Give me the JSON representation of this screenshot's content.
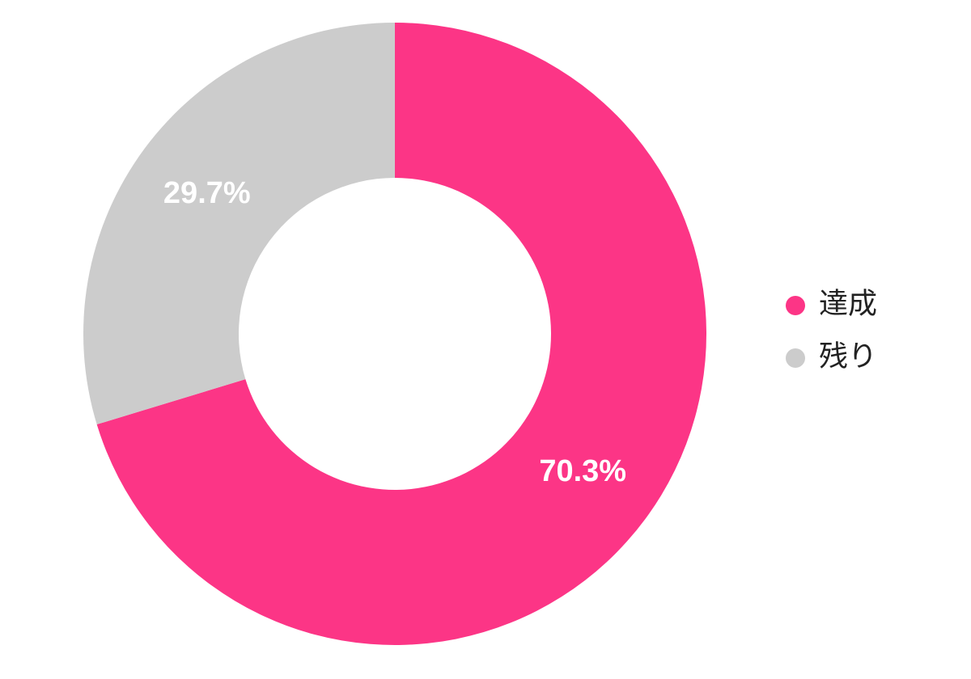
{
  "chart_data": {
    "type": "donut",
    "categories": [
      "達成",
      "残り"
    ],
    "values": [
      70.3,
      29.7
    ],
    "value_labels": [
      "70.3%",
      "29.7%"
    ],
    "colors": [
      "#fc3586",
      "#cccccc"
    ],
    "legend": "right"
  }
}
